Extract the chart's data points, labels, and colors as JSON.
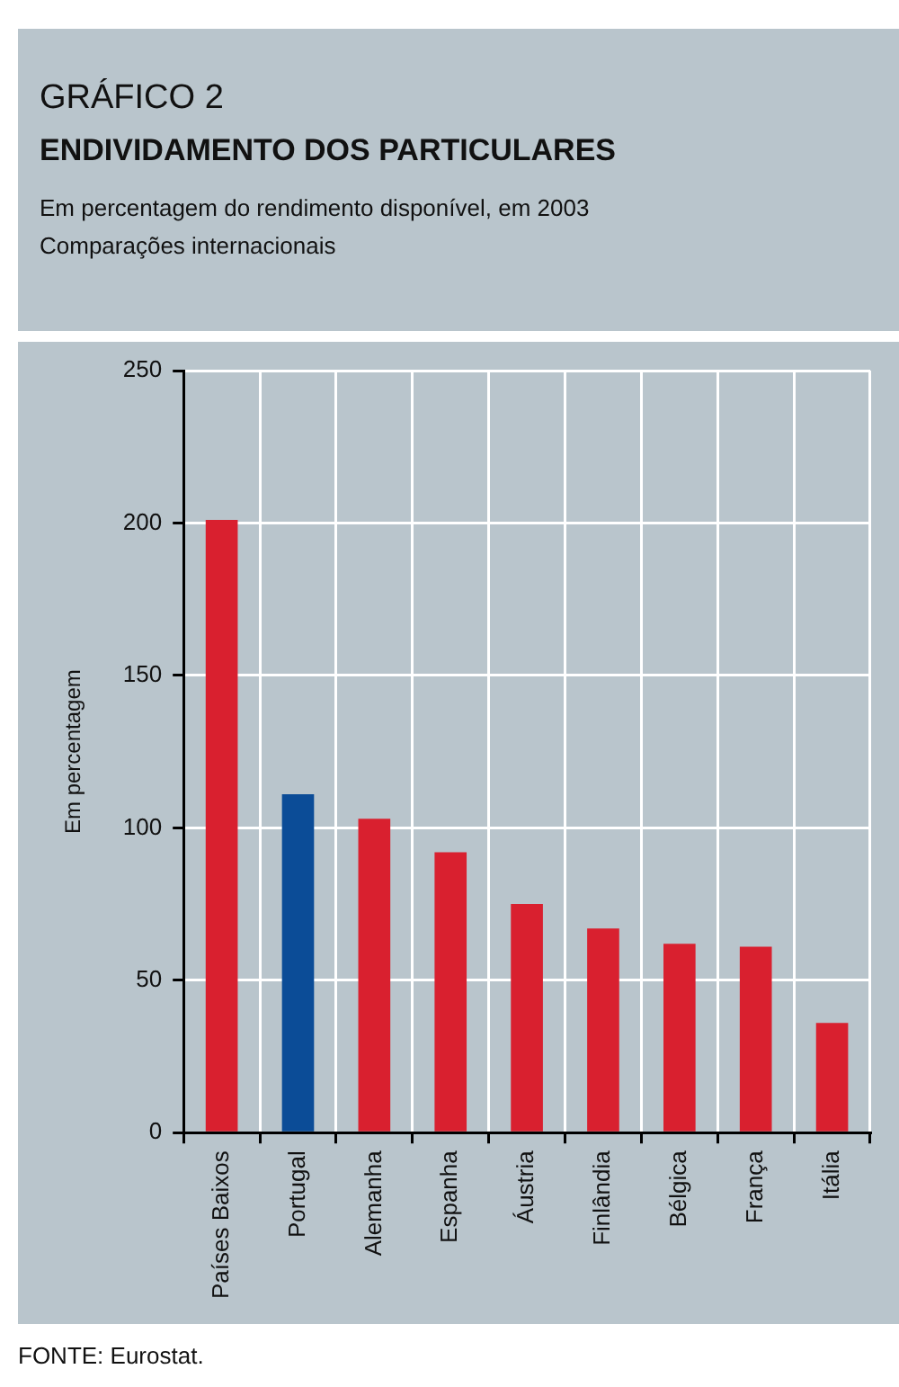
{
  "chart_data": {
    "type": "bar",
    "title": "GRÁFICO 2",
    "subtitle": "ENDIVIDAMENTO DOS PARTICULARES",
    "ylabel": "Em percentagem",
    "annotations": [
      "Em percentagem do rendimento disponível, em 2003",
      "Comparações internacionais",
      "FONTE: Eurostat."
    ],
    "categories": [
      "Países Baixos",
      "Portugal",
      "Alemanha",
      "Espanha",
      "Áustria",
      "Finlândia",
      "Bélgica",
      "França",
      "Itália"
    ],
    "values": [
      201,
      111,
      103,
      92,
      75,
      67,
      62,
      61,
      36
    ],
    "colors": [
      "#d9202f",
      "#0b4c97",
      "#d9202f",
      "#d9202f",
      "#d9202f",
      "#d9202f",
      "#d9202f",
      "#d9202f",
      "#d9202f"
    ],
    "ylim": [
      0,
      250
    ],
    "yticks": [
      0,
      50,
      100,
      150,
      200,
      250
    ],
    "grid": true,
    "legend": false
  }
}
